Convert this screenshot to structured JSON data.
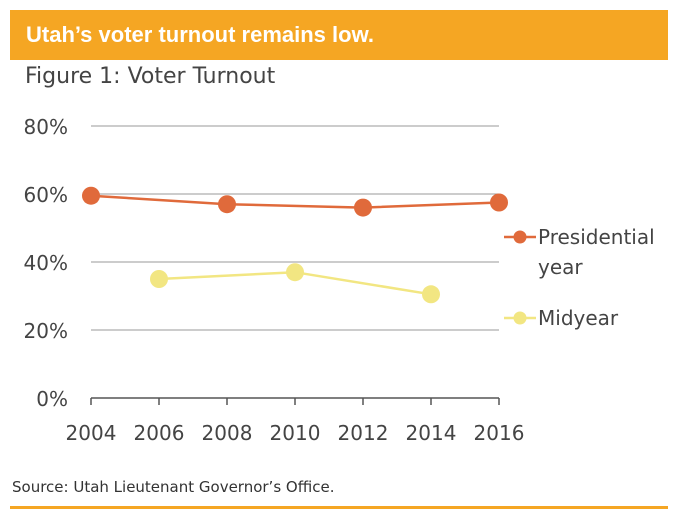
{
  "banner": {
    "title": "Utah’s voter turnout remains low.",
    "color": "#f5a623"
  },
  "figure_title": "Figure 1: Voter Turnout",
  "source": "Source:  Utah Lieutenant Governor’s Office.",
  "chart_data": {
    "type": "line",
    "title": "Figure 1: Voter Turnout",
    "xlabel": "",
    "ylabel": "",
    "x": [
      2004,
      2006,
      2008,
      2010,
      2012,
      2014,
      2016
    ],
    "ylim": [
      0,
      80
    ],
    "y_ticks": [
      0,
      20,
      40,
      60,
      80
    ],
    "y_tick_labels": [
      "0%",
      "20%",
      "40%",
      "60%",
      "80%"
    ],
    "x_tick_labels": [
      "2004",
      "2006",
      "2008",
      "2010",
      "2012",
      "2014",
      "2016"
    ],
    "grid": true,
    "legend_position": "right",
    "series": [
      {
        "name": "Presidential year",
        "legend_lines": [
          "Presidential",
          "year"
        ],
        "color": "#e06a3b",
        "points": [
          {
            "x": 2004,
            "y": 59.5
          },
          {
            "x": 2008,
            "y": 57
          },
          {
            "x": 2012,
            "y": 56
          },
          {
            "x": 2016,
            "y": 57.5
          }
        ]
      },
      {
        "name": "Midyear",
        "legend_lines": [
          "Midyear"
        ],
        "color": "#f2e682",
        "points": [
          {
            "x": 2006,
            "y": 35
          },
          {
            "x": 2010,
            "y": 37
          },
          {
            "x": 2014,
            "y": 30.5
          }
        ]
      }
    ]
  }
}
